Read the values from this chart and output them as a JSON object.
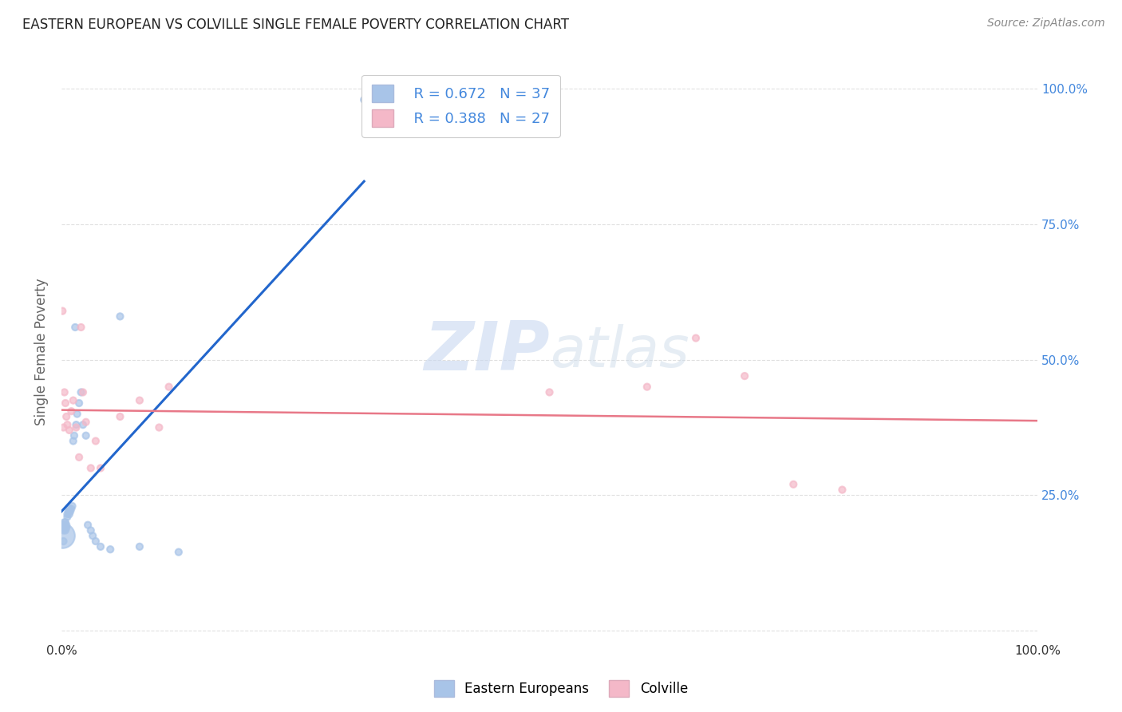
{
  "title": "EASTERN EUROPEAN VS COLVILLE SINGLE FEMALE POVERTY CORRELATION CHART",
  "source": "Source: ZipAtlas.com",
  "ylabel": "Single Female Poverty",
  "xlim": [
    0,
    1
  ],
  "ylim": [
    -0.05,
    1.05
  ],
  "background_color": "#ffffff",
  "grid_color": "#e0e0e0",
  "watermark_zip": "ZIP",
  "watermark_atlas": "atlas",
  "legend_R1": "R = 0.672",
  "legend_N1": "N = 37",
  "legend_R2": "R = 0.388",
  "legend_N2": "N = 27",
  "eastern_european_color": "#a8c4e8",
  "colville_color": "#f4b8c8",
  "line_blue": "#2266cc",
  "line_pink": "#e87888",
  "tick_blue": "#4488dd",
  "eastern_european_x": [
    0.001,
    0.002,
    0.002,
    0.002,
    0.003,
    0.003,
    0.004,
    0.004,
    0.005,
    0.005,
    0.006,
    0.006,
    0.007,
    0.008,
    0.008,
    0.009,
    0.01,
    0.011,
    0.012,
    0.013,
    0.015,
    0.016,
    0.018,
    0.02,
    0.022,
    0.025,
    0.027,
    0.03,
    0.032,
    0.035,
    0.04,
    0.05,
    0.06,
    0.08,
    0.12,
    0.31,
    0.014
  ],
  "eastern_european_y": [
    0.175,
    0.165,
    0.185,
    0.195,
    0.19,
    0.2,
    0.185,
    0.2,
    0.19,
    0.195,
    0.21,
    0.215,
    0.22,
    0.215,
    0.225,
    0.22,
    0.225,
    0.23,
    0.35,
    0.36,
    0.38,
    0.4,
    0.42,
    0.44,
    0.38,
    0.36,
    0.195,
    0.185,
    0.175,
    0.165,
    0.155,
    0.15,
    0.58,
    0.155,
    0.145,
    0.98,
    0.56
  ],
  "eastern_european_size": [
    500,
    35,
    35,
    35,
    35,
    35,
    35,
    35,
    35,
    35,
    35,
    35,
    35,
    35,
    35,
    35,
    35,
    35,
    35,
    35,
    35,
    35,
    35,
    35,
    35,
    35,
    35,
    35,
    35,
    35,
    35,
    35,
    35,
    35,
    35,
    35,
    35
  ],
  "colville_x": [
    0.001,
    0.003,
    0.004,
    0.005,
    0.006,
    0.008,
    0.01,
    0.012,
    0.015,
    0.018,
    0.02,
    0.022,
    0.025,
    0.03,
    0.035,
    0.04,
    0.06,
    0.08,
    0.1,
    0.11,
    0.5,
    0.6,
    0.65,
    0.7,
    0.75,
    0.8,
    0.002
  ],
  "colville_y": [
    0.59,
    0.44,
    0.42,
    0.395,
    0.38,
    0.37,
    0.405,
    0.425,
    0.375,
    0.32,
    0.56,
    0.44,
    0.385,
    0.3,
    0.35,
    0.3,
    0.395,
    0.425,
    0.375,
    0.45,
    0.44,
    0.45,
    0.54,
    0.47,
    0.27,
    0.26,
    0.375
  ],
  "colville_size": [
    35,
    35,
    35,
    35,
    35,
    35,
    35,
    35,
    35,
    35,
    35,
    35,
    35,
    35,
    35,
    35,
    35,
    35,
    35,
    35,
    35,
    35,
    35,
    35,
    35,
    35,
    35
  ]
}
